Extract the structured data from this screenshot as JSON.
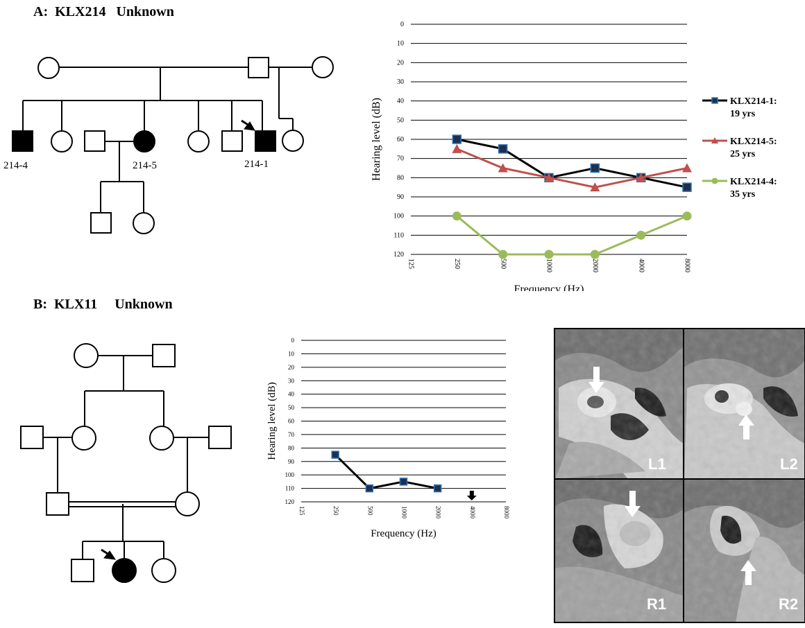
{
  "panel_a": {
    "title": "A:  KLX214   Unknown",
    "pedigree_labels": [
      "214-4",
      "214-5",
      "214-1"
    ]
  },
  "panel_b": {
    "title": "B:  KLX11     Unknown"
  },
  "ct_labels": [
    "L1",
    "L2",
    "R1",
    "R2"
  ],
  "chart_data": [
    {
      "type": "line",
      "id": "audiogram-a",
      "categories": [
        "125",
        "250",
        "500",
        "1000",
        "2000",
        "4000",
        "8000"
      ],
      "xlabel": "Frequency (Hz)",
      "ylabel": "Hearing level (dB)",
      "ylim": [
        0,
        120
      ],
      "y_inverted": true,
      "y_ticks": [
        0,
        10,
        20,
        30,
        40,
        50,
        60,
        70,
        80,
        90,
        100,
        110,
        120
      ],
      "grid": true,
      "legend": "right",
      "series": [
        {
          "name_line1": "KLX214-1:",
          "name_line2": "19 yrs",
          "color": "#000000",
          "marker": "square",
          "marker_fill": "#1f2f4f",
          "values": [
            null,
            60,
            65,
            80,
            75,
            80,
            85
          ]
        },
        {
          "name_line1": "KLX214-5:",
          "name_line2": "25 yrs",
          "color": "#c0504d",
          "marker": "triangle",
          "marker_fill": "#c0504d",
          "values": [
            null,
            65,
            75,
            80,
            85,
            80,
            75
          ]
        },
        {
          "name_line1": "KLX214-4:",
          "name_line2": "35 yrs",
          "color": "#9bbb59",
          "marker": "circle",
          "marker_fill": "#9bbb59",
          "values": [
            null,
            100,
            120,
            120,
            120,
            110,
            100
          ]
        }
      ]
    },
    {
      "type": "line",
      "id": "audiogram-b",
      "categories": [
        "125",
        "250",
        "500",
        "1000",
        "2000",
        "4000",
        "8000"
      ],
      "xlabel": "Frequency (Hz)",
      "ylabel": "Hearing level (dB)",
      "ylim": [
        0,
        120
      ],
      "y_inverted": true,
      "y_ticks": [
        0,
        10,
        20,
        30,
        40,
        50,
        60,
        70,
        80,
        90,
        100,
        110,
        120
      ],
      "grid": true,
      "series": [
        {
          "color": "#000000",
          "marker": "square",
          "marker_fill": "#1f2f4f",
          "values": [
            null,
            85,
            110,
            105,
            110,
            null,
            null
          ]
        }
      ],
      "annotation": {
        "type": "down-arrow",
        "category": "4000",
        "y": 120
      }
    }
  ]
}
